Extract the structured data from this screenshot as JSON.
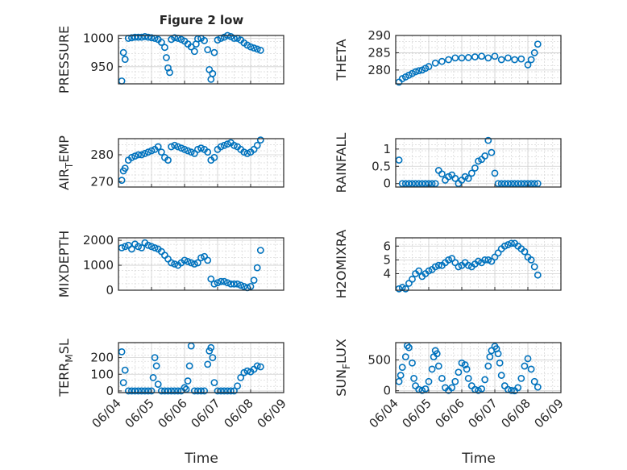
{
  "figure_title": "Figure 2 low",
  "x_label": "Time",
  "marker_color": "#0072bd",
  "chart_data": [
    {
      "type": "scatter",
      "ylabel": "PRESSURE",
      "ylim": [
        920,
        1005
      ],
      "yticks": [
        950,
        1000
      ],
      "x": [
        4.1,
        4.15,
        4.2,
        4.3,
        4.4,
        4.5,
        4.6,
        4.7,
        4.8,
        4.9,
        5.0,
        5.1,
        5.2,
        5.3,
        5.4,
        5.45,
        5.5,
        5.55,
        5.6,
        5.7,
        5.8,
        5.9,
        6.0,
        6.1,
        6.2,
        6.3,
        6.35,
        6.4,
        6.5,
        6.6,
        6.7,
        6.75,
        6.8,
        6.85,
        6.9,
        7.0,
        7.1,
        7.2,
        7.3,
        7.4,
        7.5,
        7.6,
        7.7,
        7.8,
        7.9,
        8.0,
        8.1,
        8.2,
        8.3
      ],
      "y": [
        925,
        975,
        963,
        1000,
        1001,
        1002,
        1002,
        1002,
        1003,
        1002,
        1001,
        1000,
        998,
        993,
        984,
        966,
        948,
        940,
        998,
        1001,
        1000,
        998,
        995,
        990,
        985,
        977,
        990,
        999,
        1000,
        996,
        980,
        945,
        928,
        938,
        975,
        997,
        1000,
        1002,
        1005,
        1003,
        1000,
        1000,
        997,
        992,
        988,
        985,
        983,
        981,
        979
      ]
    },
    {
      "type": "scatter",
      "ylabel": "THETA",
      "ylim": [
        276,
        290
      ],
      "yticks": [
        280,
        285,
        290
      ],
      "x": [
        4.1,
        4.2,
        4.3,
        4.4,
        4.5,
        4.6,
        4.7,
        4.8,
        4.9,
        5.0,
        5.2,
        5.4,
        5.6,
        5.8,
        6.0,
        6.2,
        6.4,
        6.6,
        6.8,
        7.0,
        7.2,
        7.4,
        7.6,
        7.8,
        8.0,
        8.1,
        8.2,
        8.3
      ],
      "y": [
        276.5,
        277.5,
        278,
        278.5,
        279,
        279.5,
        279.8,
        280,
        280.5,
        281,
        282,
        282.5,
        283,
        283.5,
        283.5,
        283.6,
        283.8,
        284,
        283.5,
        284,
        283,
        283.5,
        283,
        283.2,
        281.5,
        283,
        285,
        287.5
      ]
    },
    {
      "type": "scatter",
      "ylabel": "AIR_TEMP",
      "ylim": [
        268,
        286
      ],
      "yticks": [
        270,
        280
      ],
      "x": [
        4.1,
        4.15,
        4.2,
        4.3,
        4.4,
        4.5,
        4.6,
        4.7,
        4.8,
        4.9,
        5.0,
        5.1,
        5.2,
        5.3,
        5.4,
        5.5,
        5.6,
        5.7,
        5.8,
        5.9,
        6.0,
        6.1,
        6.2,
        6.3,
        6.4,
        6.5,
        6.6,
        6.7,
        6.8,
        6.9,
        7.0,
        7.1,
        7.2,
        7.3,
        7.4,
        7.5,
        7.6,
        7.7,
        7.8,
        7.9,
        8.0,
        8.1,
        8.2,
        8.3
      ],
      "y": [
        270.5,
        274,
        275,
        278,
        279,
        279.5,
        280,
        280,
        280.5,
        281,
        281.5,
        282,
        283,
        281,
        279,
        278,
        283,
        283.5,
        283,
        282.5,
        282,
        281.5,
        281,
        280.5,
        282,
        282.5,
        282,
        281,
        278,
        279,
        282,
        283,
        283.5,
        284,
        284.5,
        283.5,
        283,
        282,
        281,
        280.5,
        281,
        282,
        283.5,
        285.5
      ]
    },
    {
      "type": "scatter",
      "ylabel": "RAINFALL",
      "ylim": [
        -0.1,
        1.3
      ],
      "yticks": [
        0,
        0.5,
        1
      ],
      "x": [
        4.1,
        4.2,
        4.3,
        4.4,
        4.5,
        4.6,
        4.7,
        4.8,
        4.9,
        5.0,
        5.1,
        5.2,
        5.3,
        5.4,
        5.5,
        5.6,
        5.7,
        5.8,
        5.9,
        6.0,
        6.1,
        6.2,
        6.3,
        6.4,
        6.5,
        6.6,
        6.7,
        6.8,
        6.9,
        7.0,
        7.1,
        7.2,
        7.3,
        7.4,
        7.5,
        7.6,
        7.7,
        7.8,
        7.9,
        8.0,
        8.1,
        8.2,
        8.3
      ],
      "y": [
        0.68,
        0,
        0,
        0,
        0,
        0,
        0,
        0,
        0,
        0,
        0,
        0,
        0.38,
        0.28,
        0.1,
        0.2,
        0.25,
        0.15,
        0,
        0.1,
        0.2,
        0.15,
        0.3,
        0.45,
        0.65,
        0.7,
        0.8,
        1.25,
        0.9,
        0.3,
        0,
        0,
        0,
        0,
        0,
        0,
        0,
        0,
        0,
        0,
        0,
        0,
        0
      ]
    },
    {
      "type": "scatter",
      "ylabel": "MIXDEPTH",
      "ylim": [
        0,
        2100
      ],
      "yticks": [
        0,
        1000,
        2000
      ],
      "x": [
        4.1,
        4.2,
        4.3,
        4.4,
        4.5,
        4.6,
        4.7,
        4.8,
        4.9,
        5.0,
        5.1,
        5.2,
        5.3,
        5.4,
        5.5,
        5.6,
        5.7,
        5.8,
        5.9,
        6.0,
        6.1,
        6.2,
        6.3,
        6.4,
        6.5,
        6.6,
        6.7,
        6.8,
        6.9,
        7.0,
        7.1,
        7.2,
        7.3,
        7.4,
        7.5,
        7.6,
        7.7,
        7.8,
        7.9,
        8.0,
        8.1,
        8.2,
        8.3
      ],
      "y": [
        1700,
        1750,
        1800,
        1650,
        1850,
        1750,
        1700,
        1900,
        1800,
        1750,
        1700,
        1650,
        1550,
        1400,
        1250,
        1100,
        1050,
        1000,
        1100,
        1200,
        1150,
        1100,
        1050,
        1100,
        1300,
        1350,
        1200,
        450,
        250,
        300,
        350,
        350,
        300,
        250,
        250,
        250,
        200,
        150,
        100,
        150,
        400,
        900,
        1600
      ]
    },
    {
      "type": "scatter",
      "ylabel": "H2OMIXRA",
      "ylim": [
        2.8,
        6.6
      ],
      "yticks": [
        4,
        5,
        6
      ],
      "x": [
        4.1,
        4.2,
        4.3,
        4.4,
        4.5,
        4.6,
        4.7,
        4.8,
        4.9,
        5.0,
        5.1,
        5.2,
        5.3,
        5.4,
        5.5,
        5.6,
        5.7,
        5.8,
        5.9,
        6.0,
        6.1,
        6.2,
        6.3,
        6.4,
        6.5,
        6.6,
        6.7,
        6.8,
        6.9,
        7.0,
        7.1,
        7.2,
        7.3,
        7.4,
        7.5,
        7.6,
        7.7,
        7.8,
        7.9,
        8.0,
        8.1,
        8.2,
        8.3
      ],
      "y": [
        2.9,
        3.0,
        2.9,
        3.3,
        3.6,
        4.0,
        4.2,
        3.8,
        4.0,
        4.2,
        4.3,
        4.5,
        4.6,
        4.6,
        4.8,
        5.0,
        5.1,
        4.8,
        4.5,
        4.6,
        4.8,
        4.6,
        4.5,
        4.7,
        4.9,
        4.8,
        5.0,
        5.0,
        4.9,
        5.2,
        5.5,
        5.8,
        6.0,
        6.1,
        6.2,
        6.2,
        6.0,
        5.8,
        5.6,
        5.2,
        5.0,
        4.5,
        3.9
      ]
    },
    {
      "type": "scatter",
      "ylabel": "TERR_MSL",
      "ylim": [
        -10,
        290
      ],
      "yticks": [
        0,
        100,
        200
      ],
      "x": [
        4.1,
        4.15,
        4.2,
        4.3,
        4.4,
        4.5,
        4.6,
        4.7,
        4.8,
        4.9,
        5.0,
        5.05,
        5.1,
        5.15,
        5.2,
        5.3,
        5.4,
        5.5,
        5.6,
        5.7,
        5.8,
        5.9,
        6.0,
        6.05,
        6.1,
        6.15,
        6.2,
        6.3,
        6.4,
        6.5,
        6.6,
        6.7,
        6.75,
        6.8,
        6.85,
        6.9,
        7.0,
        7.1,
        7.2,
        7.3,
        7.4,
        7.5,
        7.6,
        7.7,
        7.8,
        7.9,
        8.0,
        8.1,
        8.2,
        8.3
      ],
      "y": [
        235,
        50,
        125,
        0,
        0,
        0,
        0,
        0,
        0,
        0,
        0,
        80,
        200,
        150,
        40,
        0,
        0,
        0,
        0,
        0,
        0,
        0,
        20,
        10,
        60,
        150,
        270,
        0,
        0,
        0,
        0,
        160,
        240,
        260,
        200,
        50,
        0,
        0,
        0,
        0,
        0,
        0,
        30,
        80,
        110,
        120,
        115,
        130,
        150,
        145
      ]
    },
    {
      "type": "scatter",
      "ylabel": "SUN_FLUX",
      "ylim": [
        -30,
        780
      ],
      "yticks": [
        0,
        500
      ],
      "x": [
        4.1,
        4.15,
        4.2,
        4.3,
        4.35,
        4.4,
        4.5,
        4.55,
        4.6,
        4.7,
        4.8,
        4.9,
        5.0,
        5.1,
        5.15,
        5.2,
        5.25,
        5.3,
        5.4,
        5.5,
        5.6,
        5.7,
        5.8,
        5.9,
        6.0,
        6.1,
        6.15,
        6.2,
        6.3,
        6.4,
        6.5,
        6.6,
        6.7,
        6.8,
        6.85,
        6.9,
        7.0,
        7.05,
        7.1,
        7.15,
        7.2,
        7.3,
        7.4,
        7.5,
        7.6,
        7.7,
        7.8,
        7.9,
        8.0,
        8.1,
        8.2,
        8.3
      ],
      "y": [
        150,
        250,
        380,
        550,
        730,
        700,
        450,
        200,
        80,
        20,
        5,
        30,
        150,
        350,
        550,
        650,
        600,
        400,
        200,
        50,
        5,
        50,
        150,
        300,
        450,
        420,
        350,
        200,
        80,
        20,
        5,
        30,
        180,
        400,
        550,
        650,
        720,
        680,
        600,
        450,
        250,
        80,
        20,
        5,
        0,
        50,
        200,
        400,
        520,
        350,
        150,
        60
      ]
    }
  ],
  "x_ticks": [
    "06/04",
    "06/05",
    "06/06",
    "06/07",
    "06/08",
    "06/09"
  ],
  "x_tick_values": [
    4,
    5,
    6,
    7,
    8,
    9
  ],
  "xlim": [
    4,
    9
  ]
}
